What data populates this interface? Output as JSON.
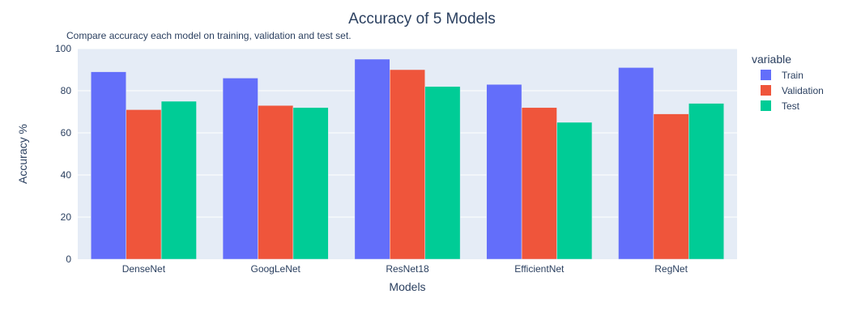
{
  "chart_data": {
    "type": "bar",
    "title": "Accuracy of 5 Models",
    "subtitle": "Compare accuracy each model on training, validation and test set.",
    "xlabel": "Models",
    "ylabel": "Accuracy %",
    "ylim": [
      0,
      100
    ],
    "yticks": [
      0,
      20,
      40,
      60,
      80,
      100
    ],
    "grid": true,
    "legend_title": "variable",
    "legend_position": "right",
    "categories": [
      "DenseNet",
      "GoogLeNet",
      "ResNet18",
      "EfficientNet",
      "RegNet"
    ],
    "series": [
      {
        "name": "Train",
        "color": "#636efa",
        "values": [
          89,
          86,
          95,
          83,
          91
        ]
      },
      {
        "name": "Validation",
        "color": "#ef553b",
        "values": [
          71,
          73,
          90,
          72,
          69
        ]
      },
      {
        "name": "Test",
        "color": "#00cc96",
        "values": [
          75,
          72,
          82,
          65,
          74
        ]
      }
    ],
    "plot_background": "#e5ecf6",
    "gridline_color": "#ffffff",
    "text_color": "#2a3f5f"
  }
}
